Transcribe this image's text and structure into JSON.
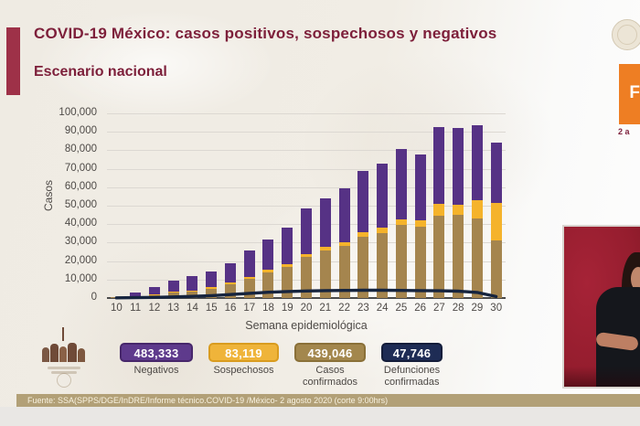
{
  "slide": {
    "title": "COVID-19 México: casos positivos, sospechosos y negativos",
    "subtitle": "Escenario nacional",
    "accent_color": "#9e3148",
    "title_color": "#7d1f3a",
    "footer": "Fuente: SSA(SPPS/DGE/InDRE/Informe técnico.COVID-19 /México- 2 agosto 2020 (corte 9:00hrs)"
  },
  "top_right": {
    "phase_label": "F",
    "date_fragment": "2 a",
    "phase_box_color": "#ee7e23"
  },
  "chart_data": {
    "type": "bar",
    "stacked": true,
    "xlabel": "Semana epidemiológica",
    "ylabel": "Casos",
    "ylim": [
      0,
      100000
    ],
    "ytick_step": 10000,
    "ytick_labels": [
      "0",
      "10,000",
      "20,000",
      "30,000",
      "40,000",
      "50,000",
      "60,000",
      "70,000",
      "80,000",
      "90,000",
      "100,000"
    ],
    "grid": true,
    "categories": [
      10,
      11,
      12,
      13,
      14,
      15,
      16,
      17,
      18,
      19,
      20,
      21,
      22,
      23,
      24,
      25,
      26,
      27,
      28,
      29,
      30
    ],
    "series": [
      {
        "name": "Casos confirmados",
        "color": "#a5854e",
        "values": [
          300,
          800,
          1500,
          3000,
          3300,
          5200,
          7500,
          10500,
          14000,
          16700,
          22500,
          25700,
          28300,
          33300,
          35200,
          39700,
          38500,
          44500,
          45000,
          43300,
          31000
        ]
      },
      {
        "name": "Sospechosos",
        "color": "#f5b32b",
        "values": [
          100,
          200,
          300,
          400,
          500,
          600,
          800,
          1000,
          1200,
          1500,
          1500,
          1800,
          2000,
          2400,
          2800,
          3000,
          3700,
          6500,
          5500,
          9700,
          20700
        ]
      },
      {
        "name": "Negativos",
        "color": "#563285",
        "values": [
          200,
          2000,
          4000,
          5800,
          7900,
          8400,
          10500,
          14300,
          16500,
          19800,
          24300,
          26500,
          29000,
          33000,
          34700,
          38000,
          35500,
          41500,
          41500,
          40800,
          32500
        ]
      }
    ],
    "line_series": {
      "name": "Defunciones confirmadas",
      "color": "#16243e",
      "values": [
        100,
        200,
        350,
        600,
        900,
        1300,
        1900,
        2500,
        3100,
        3500,
        3800,
        4000,
        4100,
        4200,
        4200,
        4100,
        4000,
        3900,
        3700,
        3000,
        800
      ]
    }
  },
  "totals": [
    {
      "value": "483,333",
      "label": "Negativos",
      "bg": "#5e3a8c",
      "border": "#47276b"
    },
    {
      "value": "83,119",
      "label": "Sospechosos",
      "bg": "#efb43a",
      "border": "#d99c1f"
    },
    {
      "value": "439,046",
      "label": "Casos confirmados",
      "bg": "#a3874d",
      "border": "#8a7038"
    },
    {
      "value": "47,746",
      "label": "Defunciones confirmadas",
      "bg": "#1e2c55",
      "border": "#141d3a"
    }
  ]
}
